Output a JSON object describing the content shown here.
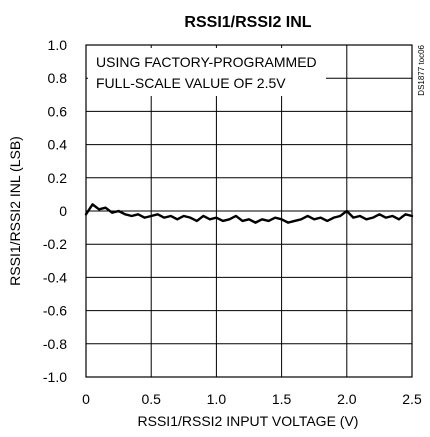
{
  "chart_data": {
    "type": "line",
    "title": "RSSI1/RSSI2 INL",
    "xlabel": "RSSI1/RSSI2 INPUT VOLTAGE (V)",
    "ylabel": "RSSI1/RSSI2 INL (LSB)",
    "xlim": [
      0,
      2.5
    ],
    "ylim": [
      -1.0,
      1.0
    ],
    "x_ticks": [
      0,
      0.5,
      1.0,
      1.5,
      2.0,
      2.5
    ],
    "x_tick_labels": [
      "0",
      "0.5",
      "1.0",
      "1.5",
      "2.0",
      "2.5"
    ],
    "y_ticks": [
      1.0,
      0.8,
      0.6,
      0.4,
      0.2,
      0,
      -0.2,
      -0.4,
      -0.6,
      -0.8,
      -1.0
    ],
    "y_tick_labels": [
      "1.0",
      "0.8",
      "0.6",
      "0.4",
      "0.2",
      "0",
      "-0.2",
      "-0.4",
      "-0.6",
      "-0.8",
      "-1.0"
    ],
    "grid": true,
    "annotation": [
      "USING FACTORY-PROGRAMMED",
      "FULL-SCALE VALUE OF 2.5V"
    ],
    "figure_code": "DS1877 toc06",
    "series": [
      {
        "x": [
          0,
          0.05,
          0.1,
          0.15,
          0.2,
          0.25,
          0.3,
          0.35,
          0.4,
          0.45,
          0.5,
          0.55,
          0.6,
          0.65,
          0.7,
          0.75,
          0.8,
          0.85,
          0.9,
          0.95,
          1.0,
          1.05,
          1.1,
          1.15,
          1.2,
          1.25,
          1.3,
          1.35,
          1.4,
          1.45,
          1.5,
          1.55,
          1.6,
          1.65,
          1.7,
          1.75,
          1.8,
          1.85,
          1.9,
          1.95,
          2.0,
          2.05,
          2.1,
          2.15,
          2.2,
          2.25,
          2.3,
          2.35,
          2.4,
          2.45,
          2.5
        ],
        "values": [
          -0.02,
          0.04,
          0.01,
          0.02,
          -0.01,
          0.0,
          -0.02,
          -0.03,
          -0.02,
          -0.04,
          -0.03,
          -0.02,
          -0.04,
          -0.03,
          -0.05,
          -0.03,
          -0.04,
          -0.06,
          -0.03,
          -0.05,
          -0.04,
          -0.06,
          -0.05,
          -0.03,
          -0.06,
          -0.05,
          -0.07,
          -0.05,
          -0.06,
          -0.04,
          -0.05,
          -0.07,
          -0.06,
          -0.05,
          -0.03,
          -0.05,
          -0.04,
          -0.06,
          -0.04,
          -0.03,
          0.0,
          -0.04,
          -0.03,
          -0.05,
          -0.04,
          -0.02,
          -0.04,
          -0.03,
          -0.05,
          -0.02,
          -0.03
        ]
      }
    ]
  }
}
